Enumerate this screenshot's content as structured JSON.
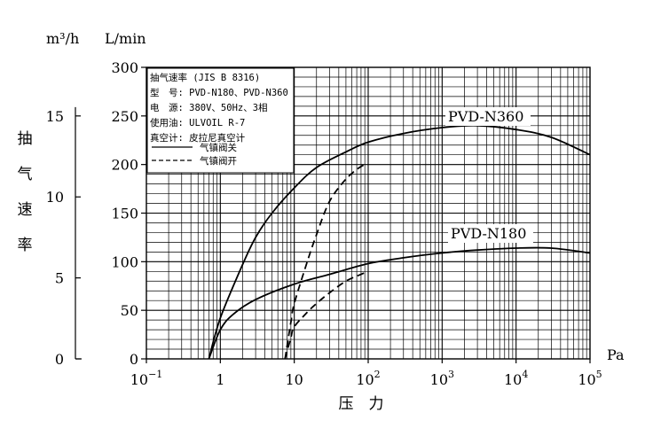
{
  "chart_data": {
    "type": "line",
    "x_scale": "log",
    "xlim": [
      0.1,
      100000
    ],
    "ylim": [
      0,
      300
    ],
    "xlabel": "压　力",
    "x_unit": "Pa",
    "ylabel_chars": [
      "抽",
      "气",
      "速",
      "率"
    ],
    "y_unit_left": "m³/h",
    "y_unit_right": "L/min",
    "x_ticks": [
      {
        "value": 0.1,
        "base": "10",
        "exp": "−1"
      },
      {
        "value": 1,
        "base": "1",
        "exp": ""
      },
      {
        "value": 10,
        "base": "10",
        "exp": ""
      },
      {
        "value": 100,
        "base": "10",
        "exp": "2"
      },
      {
        "value": 1000,
        "base": "10",
        "exp": "3"
      },
      {
        "value": 10000,
        "base": "10",
        "exp": "4"
      },
      {
        "value": 100000,
        "base": "10",
        "exp": "5"
      }
    ],
    "y_ticks_lmin": [
      "0",
      "50",
      "100",
      "150",
      "200",
      "250",
      "300"
    ],
    "y_ticks_m3h": [
      {
        "value": 0,
        "label": "0"
      },
      {
        "value": 5,
        "label": "5"
      },
      {
        "value": 10,
        "label": "10"
      },
      {
        "value": 15,
        "label": "15"
      }
    ],
    "legend": {
      "lines": [
        "抽气速率 (JIS B 8316)",
        "型　号: PVD-N180、PVD-N360",
        "电　源: 380V、50Hz、3相",
        "使用油: ULVOIL R-7",
        "真空计: 皮拉尼真空计"
      ],
      "styles": [
        {
          "label": "气镇阀关",
          "dash": "solid"
        },
        {
          "label": "气镇阀开",
          "dash": "dashed"
        }
      ]
    },
    "series": [
      {
        "name": "PVD-N360",
        "style": "solid",
        "points": [
          [
            0.7,
            0
          ],
          [
            1,
            42
          ],
          [
            2,
            97
          ],
          [
            3,
            125
          ],
          [
            5,
            150
          ],
          [
            10,
            176
          ],
          [
            20,
            197
          ],
          [
            50,
            213
          ],
          [
            100,
            223
          ],
          [
            300,
            232
          ],
          [
            1000,
            238
          ],
          [
            3000,
            240
          ],
          [
            10000,
            236
          ],
          [
            30000,
            228
          ],
          [
            100000,
            210
          ]
        ]
      },
      {
        "name": "PVD-N180",
        "style": "solid",
        "points": [
          [
            0.7,
            0
          ],
          [
            1,
            30
          ],
          [
            1.5,
            46
          ],
          [
            3,
            61
          ],
          [
            10,
            77
          ],
          [
            30,
            87
          ],
          [
            100,
            98
          ],
          [
            300,
            104
          ],
          [
            1000,
            109
          ],
          [
            3000,
            112
          ],
          [
            10000,
            114
          ],
          [
            30000,
            114
          ],
          [
            100000,
            109
          ]
        ]
      },
      {
        "name": "PVD-N360 气镇阀开",
        "style": "dashed",
        "points": [
          [
            7.5,
            0
          ],
          [
            9,
            38
          ],
          [
            10,
            57
          ],
          [
            15,
            100
          ],
          [
            20,
            128
          ],
          [
            30,
            162
          ],
          [
            50,
            185
          ],
          [
            80,
            198
          ],
          [
            100,
            200
          ]
        ]
      },
      {
        "name": "PVD-N180 气镇阀开",
        "style": "dashed",
        "points": [
          [
            7.5,
            0
          ],
          [
            9,
            22
          ],
          [
            10,
            33
          ],
          [
            15,
            48
          ],
          [
            20,
            57
          ],
          [
            30,
            68
          ],
          [
            50,
            80
          ],
          [
            80,
            87
          ],
          [
            100,
            90
          ]
        ]
      }
    ],
    "grid": true
  }
}
